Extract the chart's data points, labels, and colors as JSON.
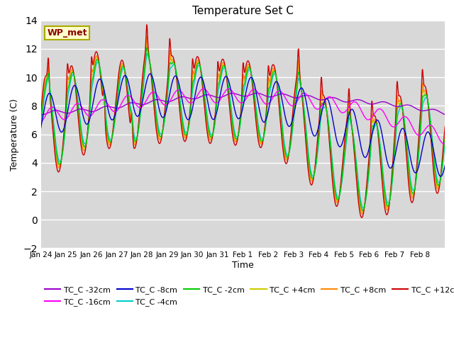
{
  "title": "Temperature Set C",
  "xlabel": "Time",
  "ylabel": "Temperature (C)",
  "ylim": [
    -2,
    14
  ],
  "yticks": [
    -2,
    0,
    2,
    4,
    6,
    8,
    10,
    12,
    14
  ],
  "bg_color": "#d8d8d8",
  "fig_color": "#ffffff",
  "annotation_text": "WP_met",
  "annotation_bg": "#ffffcc",
  "annotation_border": "#aaaa00",
  "series_colors": {
    "TC_C -32cm": "#9900cc",
    "TC_C -16cm": "#ff00ff",
    "TC_C -8cm": "#0000cc",
    "TC_C -4cm": "#00cccc",
    "TC_C -2cm": "#00cc00",
    "TC_C +4cm": "#cccc00",
    "TC_C +8cm": "#ff8800",
    "TC_C +12cm": "#cc0000"
  },
  "x_tick_labels": [
    "Jan 24",
    "Jan 25",
    "Jan 26",
    "Jan 27",
    "Jan 28",
    "Jan 29",
    "Jan 30",
    "Jan 31",
    "Feb 1",
    "Feb 2",
    "Feb 3",
    "Feb 4",
    "Feb 5",
    "Feb 6",
    "Feb 7",
    "Feb 8"
  ],
  "legend_order": [
    "TC_C -32cm",
    "TC_C -16cm",
    "TC_C -8cm",
    "TC_C -4cm",
    "TC_C -2cm",
    "TC_C +4cm",
    "TC_C +8cm",
    "TC_C +12cm"
  ]
}
